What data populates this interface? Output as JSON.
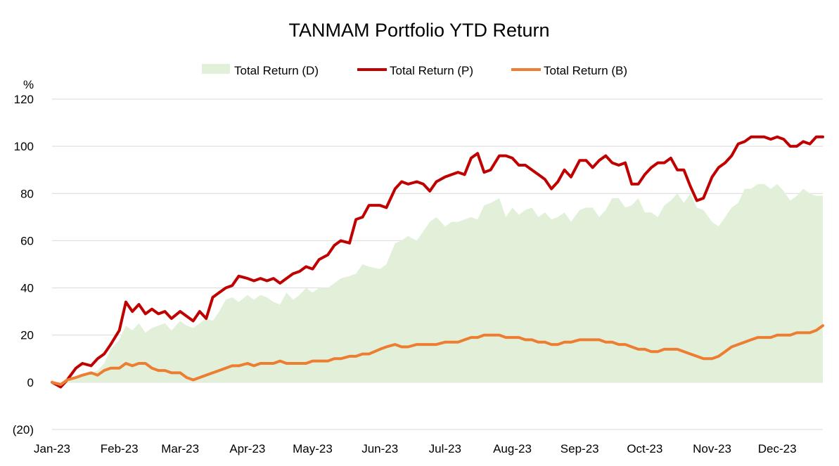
{
  "chart_data": {
    "type": "line",
    "title": "TANMAM Portfolio YTD Return",
    "ylabel": "%",
    "xlabel": "",
    "ylim": [
      -20,
      120
    ],
    "grid": true,
    "legend_position": "top-center",
    "y_ticks": [
      {
        "value": 120,
        "label": "120",
        "color": "#000000"
      },
      {
        "value": 100,
        "label": "100",
        "color": "#000000"
      },
      {
        "value": 80,
        "label": "80",
        "color": "#000000"
      },
      {
        "value": 60,
        "label": "60",
        "color": "#000000"
      },
      {
        "value": 40,
        "label": "40",
        "color": "#000000"
      },
      {
        "value": 20,
        "label": "20",
        "color": "#000000"
      },
      {
        "value": 0,
        "label": "0",
        "color": "#000000"
      },
      {
        "value": -20,
        "label": "(20)",
        "color": "#ff0000"
      }
    ],
    "x_ticks": [
      {
        "date": "2023-01-01",
        "label": "Jan-23"
      },
      {
        "date": "2023-02-01",
        "label": "Feb-23"
      },
      {
        "date": "2023-03-01",
        "label": "Mar-23"
      },
      {
        "date": "2023-04-01",
        "label": "Apr-23"
      },
      {
        "date": "2023-05-01",
        "label": "May-23"
      },
      {
        "date": "2023-06-01",
        "label": "Jun-23"
      },
      {
        "date": "2023-07-01",
        "label": "Jul-23"
      },
      {
        "date": "2023-08-01",
        "label": "Aug-23"
      },
      {
        "date": "2023-09-01",
        "label": "Sep-23"
      },
      {
        "date": "2023-10-01",
        "label": "Oct-23"
      },
      {
        "date": "2023-11-01",
        "label": "Nov-23"
      },
      {
        "date": "2023-12-01",
        "label": "Dec-23"
      }
    ],
    "x": [
      "2023-01-01",
      "2023-01-05",
      "2023-01-08",
      "2023-01-12",
      "2023-01-15",
      "2023-01-19",
      "2023-01-22",
      "2023-01-25",
      "2023-01-28",
      "2023-02-01",
      "2023-02-04",
      "2023-02-07",
      "2023-02-10",
      "2023-02-13",
      "2023-02-16",
      "2023-02-19",
      "2023-02-22",
      "2023-02-25",
      "2023-03-01",
      "2023-03-04",
      "2023-03-07",
      "2023-03-10",
      "2023-03-13",
      "2023-03-16",
      "2023-03-19",
      "2023-03-22",
      "2023-03-25",
      "2023-03-28",
      "2023-04-01",
      "2023-04-04",
      "2023-04-07",
      "2023-04-10",
      "2023-04-13",
      "2023-04-16",
      "2023-04-19",
      "2023-04-22",
      "2023-04-25",
      "2023-04-28",
      "2023-05-01",
      "2023-05-04",
      "2023-05-08",
      "2023-05-11",
      "2023-05-14",
      "2023-05-18",
      "2023-05-21",
      "2023-05-24",
      "2023-05-27",
      "2023-06-01",
      "2023-06-04",
      "2023-06-08",
      "2023-06-11",
      "2023-06-14",
      "2023-06-18",
      "2023-06-21",
      "2023-06-24",
      "2023-06-27",
      "2023-07-01",
      "2023-07-04",
      "2023-07-07",
      "2023-07-10",
      "2023-07-13",
      "2023-07-16",
      "2023-07-19",
      "2023-07-22",
      "2023-07-26",
      "2023-07-29",
      "2023-08-01",
      "2023-08-04",
      "2023-08-07",
      "2023-08-10",
      "2023-08-13",
      "2023-08-16",
      "2023-08-19",
      "2023-08-22",
      "2023-08-25",
      "2023-08-28",
      "2023-09-01",
      "2023-09-04",
      "2023-09-07",
      "2023-09-10",
      "2023-09-13",
      "2023-09-16",
      "2023-09-19",
      "2023-09-22",
      "2023-09-25",
      "2023-09-28",
      "2023-10-01",
      "2023-10-04",
      "2023-10-07",
      "2023-10-10",
      "2023-10-13",
      "2023-10-16",
      "2023-10-19",
      "2023-10-22",
      "2023-10-25",
      "2023-10-28",
      "2023-11-01",
      "2023-11-04",
      "2023-11-07",
      "2023-11-10",
      "2023-11-13",
      "2023-11-16",
      "2023-11-19",
      "2023-11-22",
      "2023-11-25",
      "2023-11-28",
      "2023-12-01",
      "2023-12-04",
      "2023-12-07",
      "2023-12-10",
      "2023-12-13",
      "2023-12-16",
      "2023-12-19",
      "2023-12-22"
    ],
    "series": [
      {
        "name": "Total Return (D)",
        "style": "area",
        "color": "#e2efd9",
        "values": [
          0,
          0,
          1,
          2,
          3,
          4,
          5,
          8,
          14,
          18,
          24,
          22,
          25,
          21,
          23,
          24,
          25,
          22,
          26,
          24,
          23,
          25,
          27,
          26,
          30,
          35,
          36,
          34,
          37,
          35,
          37,
          36,
          34,
          33,
          38,
          35,
          37,
          40,
          38,
          40,
          40,
          42,
          44,
          45,
          46,
          50,
          49,
          48,
          50,
          59,
          60,
          62,
          60,
          64,
          68,
          70,
          66,
          68,
          68,
          69,
          70,
          69,
          75,
          76,
          78,
          70,
          74,
          71,
          73,
          74,
          70,
          72,
          69,
          70,
          72,
          68,
          73,
          74,
          74,
          70,
          73,
          78,
          78,
          74,
          75,
          78,
          72,
          72,
          70,
          75,
          77,
          80,
          76,
          80,
          74,
          73,
          68,
          66,
          70,
          74,
          76,
          82,
          82,
          84,
          84,
          82,
          84,
          81,
          77,
          79,
          82,
          80,
          79,
          79
        ]
      },
      {
        "name": "Total Return (P)",
        "style": "line",
        "color": "#c00000",
        "values": [
          0,
          -2,
          1,
          6,
          8,
          7,
          10,
          12,
          16,
          22,
          34,
          30,
          33,
          29,
          31,
          29,
          30,
          27,
          30,
          28,
          26,
          30,
          27,
          36,
          38,
          40,
          41,
          45,
          44,
          43,
          44,
          43,
          44,
          42,
          44,
          46,
          47,
          49,
          48,
          52,
          54,
          58,
          60,
          59,
          69,
          70,
          75,
          75,
          74,
          82,
          85,
          84,
          85,
          84,
          81,
          85,
          87,
          88,
          89,
          88,
          95,
          97,
          89,
          90,
          96,
          96,
          95,
          92,
          92,
          90,
          88,
          86,
          82,
          85,
          90,
          87,
          94,
          94,
          91,
          94,
          96,
          93,
          92,
          93,
          84,
          84,
          88,
          91,
          93,
          93,
          95,
          90,
          90,
          83,
          77,
          78,
          87,
          91,
          93,
          96,
          101,
          102,
          104,
          104,
          104,
          103,
          104,
          103,
          100,
          100,
          102,
          101,
          104,
          104
        ]
      },
      {
        "name": "Total Return (B)",
        "style": "line",
        "color": "#ed7d31",
        "values": [
          0,
          -1,
          1,
          2,
          3,
          4,
          3,
          5,
          6,
          6,
          8,
          7,
          8,
          8,
          6,
          5,
          5,
          4,
          4,
          2,
          1,
          2,
          3,
          4,
          5,
          6,
          7,
          7,
          8,
          7,
          8,
          8,
          8,
          9,
          8,
          8,
          8,
          8,
          9,
          9,
          9,
          10,
          10,
          11,
          11,
          12,
          12,
          14,
          15,
          16,
          15,
          15,
          16,
          16,
          16,
          16,
          17,
          17,
          17,
          18,
          19,
          19,
          20,
          20,
          20,
          19,
          19,
          19,
          18,
          18,
          17,
          17,
          16,
          16,
          17,
          17,
          18,
          18,
          18,
          18,
          17,
          17,
          16,
          16,
          15,
          14,
          14,
          13,
          13,
          14,
          14,
          14,
          13,
          12,
          11,
          10,
          10,
          11,
          13,
          15,
          16,
          17,
          18,
          19,
          19,
          19,
          20,
          20,
          20,
          21,
          21,
          21,
          22,
          24
        ]
      }
    ]
  }
}
